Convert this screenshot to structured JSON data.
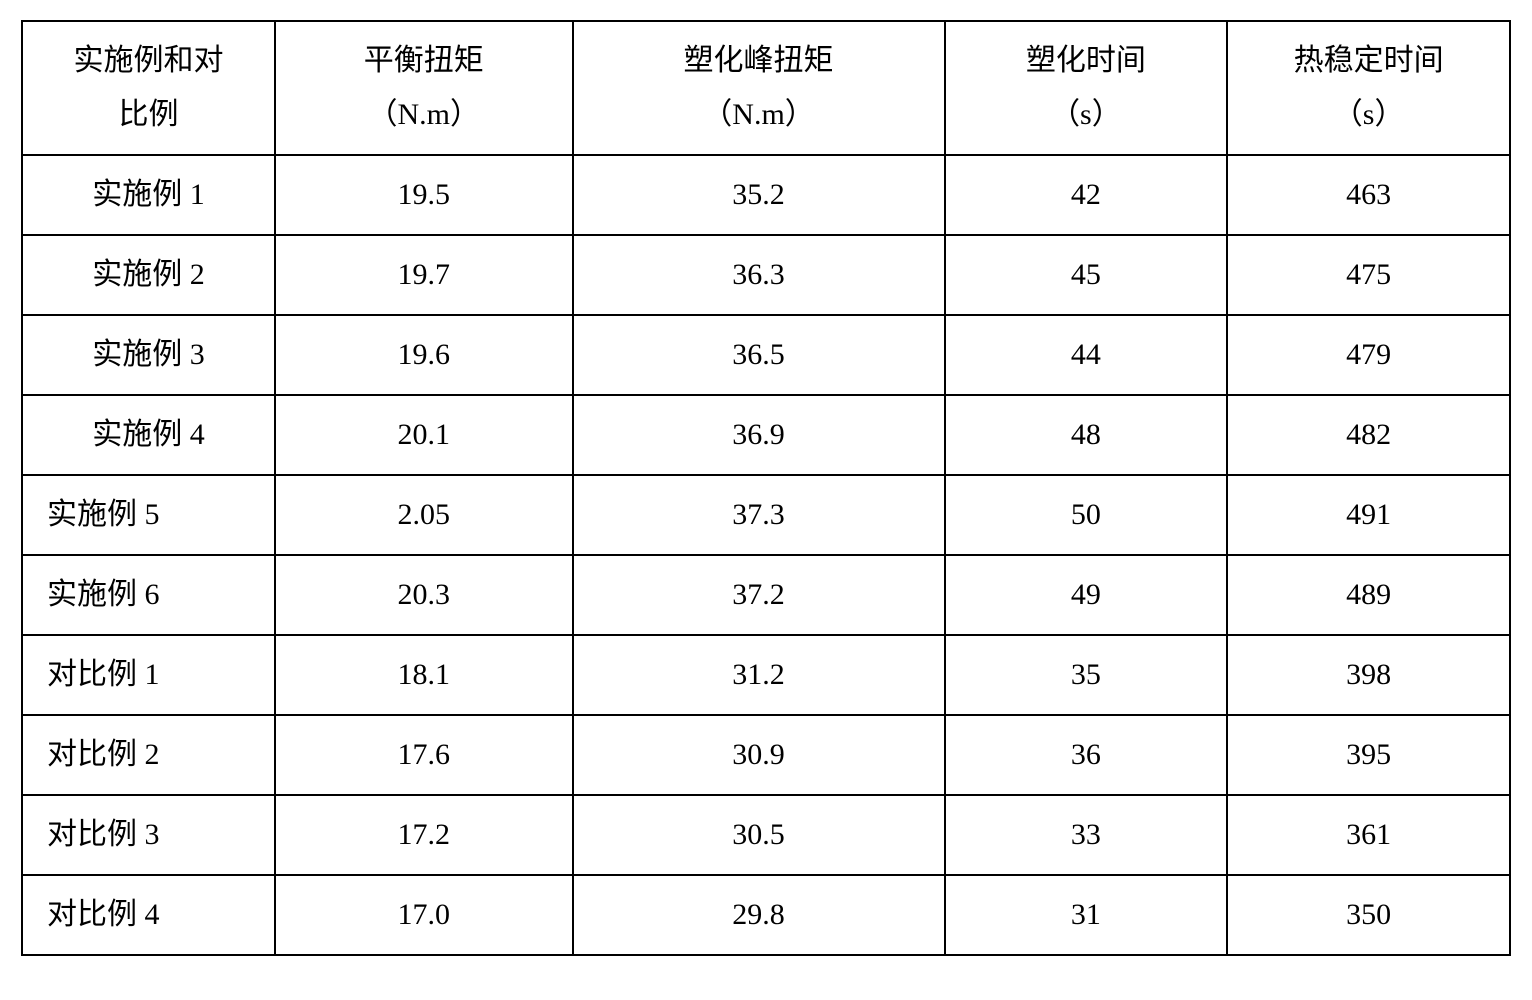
{
  "table": {
    "type": "table",
    "background_color": "#ffffff",
    "border_color": "#000000",
    "border_width": 2,
    "text_color": "#000000",
    "header_fontsize": 30,
    "cell_fontsize": 30,
    "columns": [
      {
        "header_line1": "实施例和对",
        "header_line2": "比例",
        "width_pct": 17,
        "align": "center"
      },
      {
        "header_line1": "平衡扭矩",
        "header_line2": "（N.m）",
        "width_pct": 20,
        "align": "center"
      },
      {
        "header_line1": "塑化峰扭矩",
        "header_line2": "（N.m）",
        "width_pct": 25,
        "align": "center"
      },
      {
        "header_line1": "塑化时间",
        "header_line2": "（s）",
        "width_pct": 19,
        "align": "center"
      },
      {
        "header_line1": "热稳定时间",
        "header_line2": "（s）",
        "width_pct": 19,
        "align": "center"
      }
    ],
    "rows": [
      {
        "label": "实施例 1",
        "c2": "19.5",
        "c3": "35.2",
        "c4": "42",
        "c5": "463",
        "align": "center"
      },
      {
        "label": "实施例 2",
        "c2": "19.7",
        "c3": "36.3",
        "c4": "45",
        "c5": "475",
        "align": "center"
      },
      {
        "label": "实施例 3",
        "c2": "19.6",
        "c3": "36.5",
        "c4": "44",
        "c5": "479",
        "align": "center"
      },
      {
        "label": "实施例 4",
        "c2": "20.1",
        "c3": "36.9",
        "c4": "48",
        "c5": "482",
        "align": "center"
      },
      {
        "label": "实施例 5",
        "c2": "2.05",
        "c3": "37.3",
        "c4": "50",
        "c5": "491",
        "align": "left"
      },
      {
        "label": "实施例 6",
        "c2": "20.3",
        "c3": "37.2",
        "c4": "49",
        "c5": "489",
        "align": "left"
      },
      {
        "label": "对比例 1",
        "c2": "18.1",
        "c3": "31.2",
        "c4": "35",
        "c5": "398",
        "align": "left"
      },
      {
        "label": "对比例 2",
        "c2": "17.6",
        "c3": "30.9",
        "c4": "36",
        "c5": "395",
        "align": "left"
      },
      {
        "label": "对比例 3",
        "c2": "17.2",
        "c3": "30.5",
        "c4": "33",
        "c5": "361",
        "align": "left"
      },
      {
        "label": "对比例 4",
        "c2": "17.0",
        "c3": "29.8",
        "c4": "31",
        "c5": "350",
        "align": "left"
      }
    ]
  }
}
